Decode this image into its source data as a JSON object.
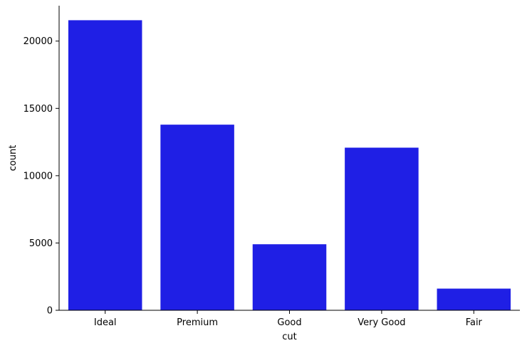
{
  "chart_data": {
    "type": "bar",
    "title": "",
    "xlabel": "cut",
    "ylabel": "count",
    "categories": [
      "Ideal",
      "Premium",
      "Good",
      "Very Good",
      "Fair"
    ],
    "values": [
      21551,
      13791,
      4906,
      12082,
      1610
    ],
    "ylim": [
      0,
      22630
    ],
    "yticks": [
      0,
      5000,
      10000,
      15000,
      20000
    ],
    "grid": false,
    "legend": "none",
    "colors": {
      "bar": "#1f1fe5",
      "axis": "#000000"
    }
  }
}
